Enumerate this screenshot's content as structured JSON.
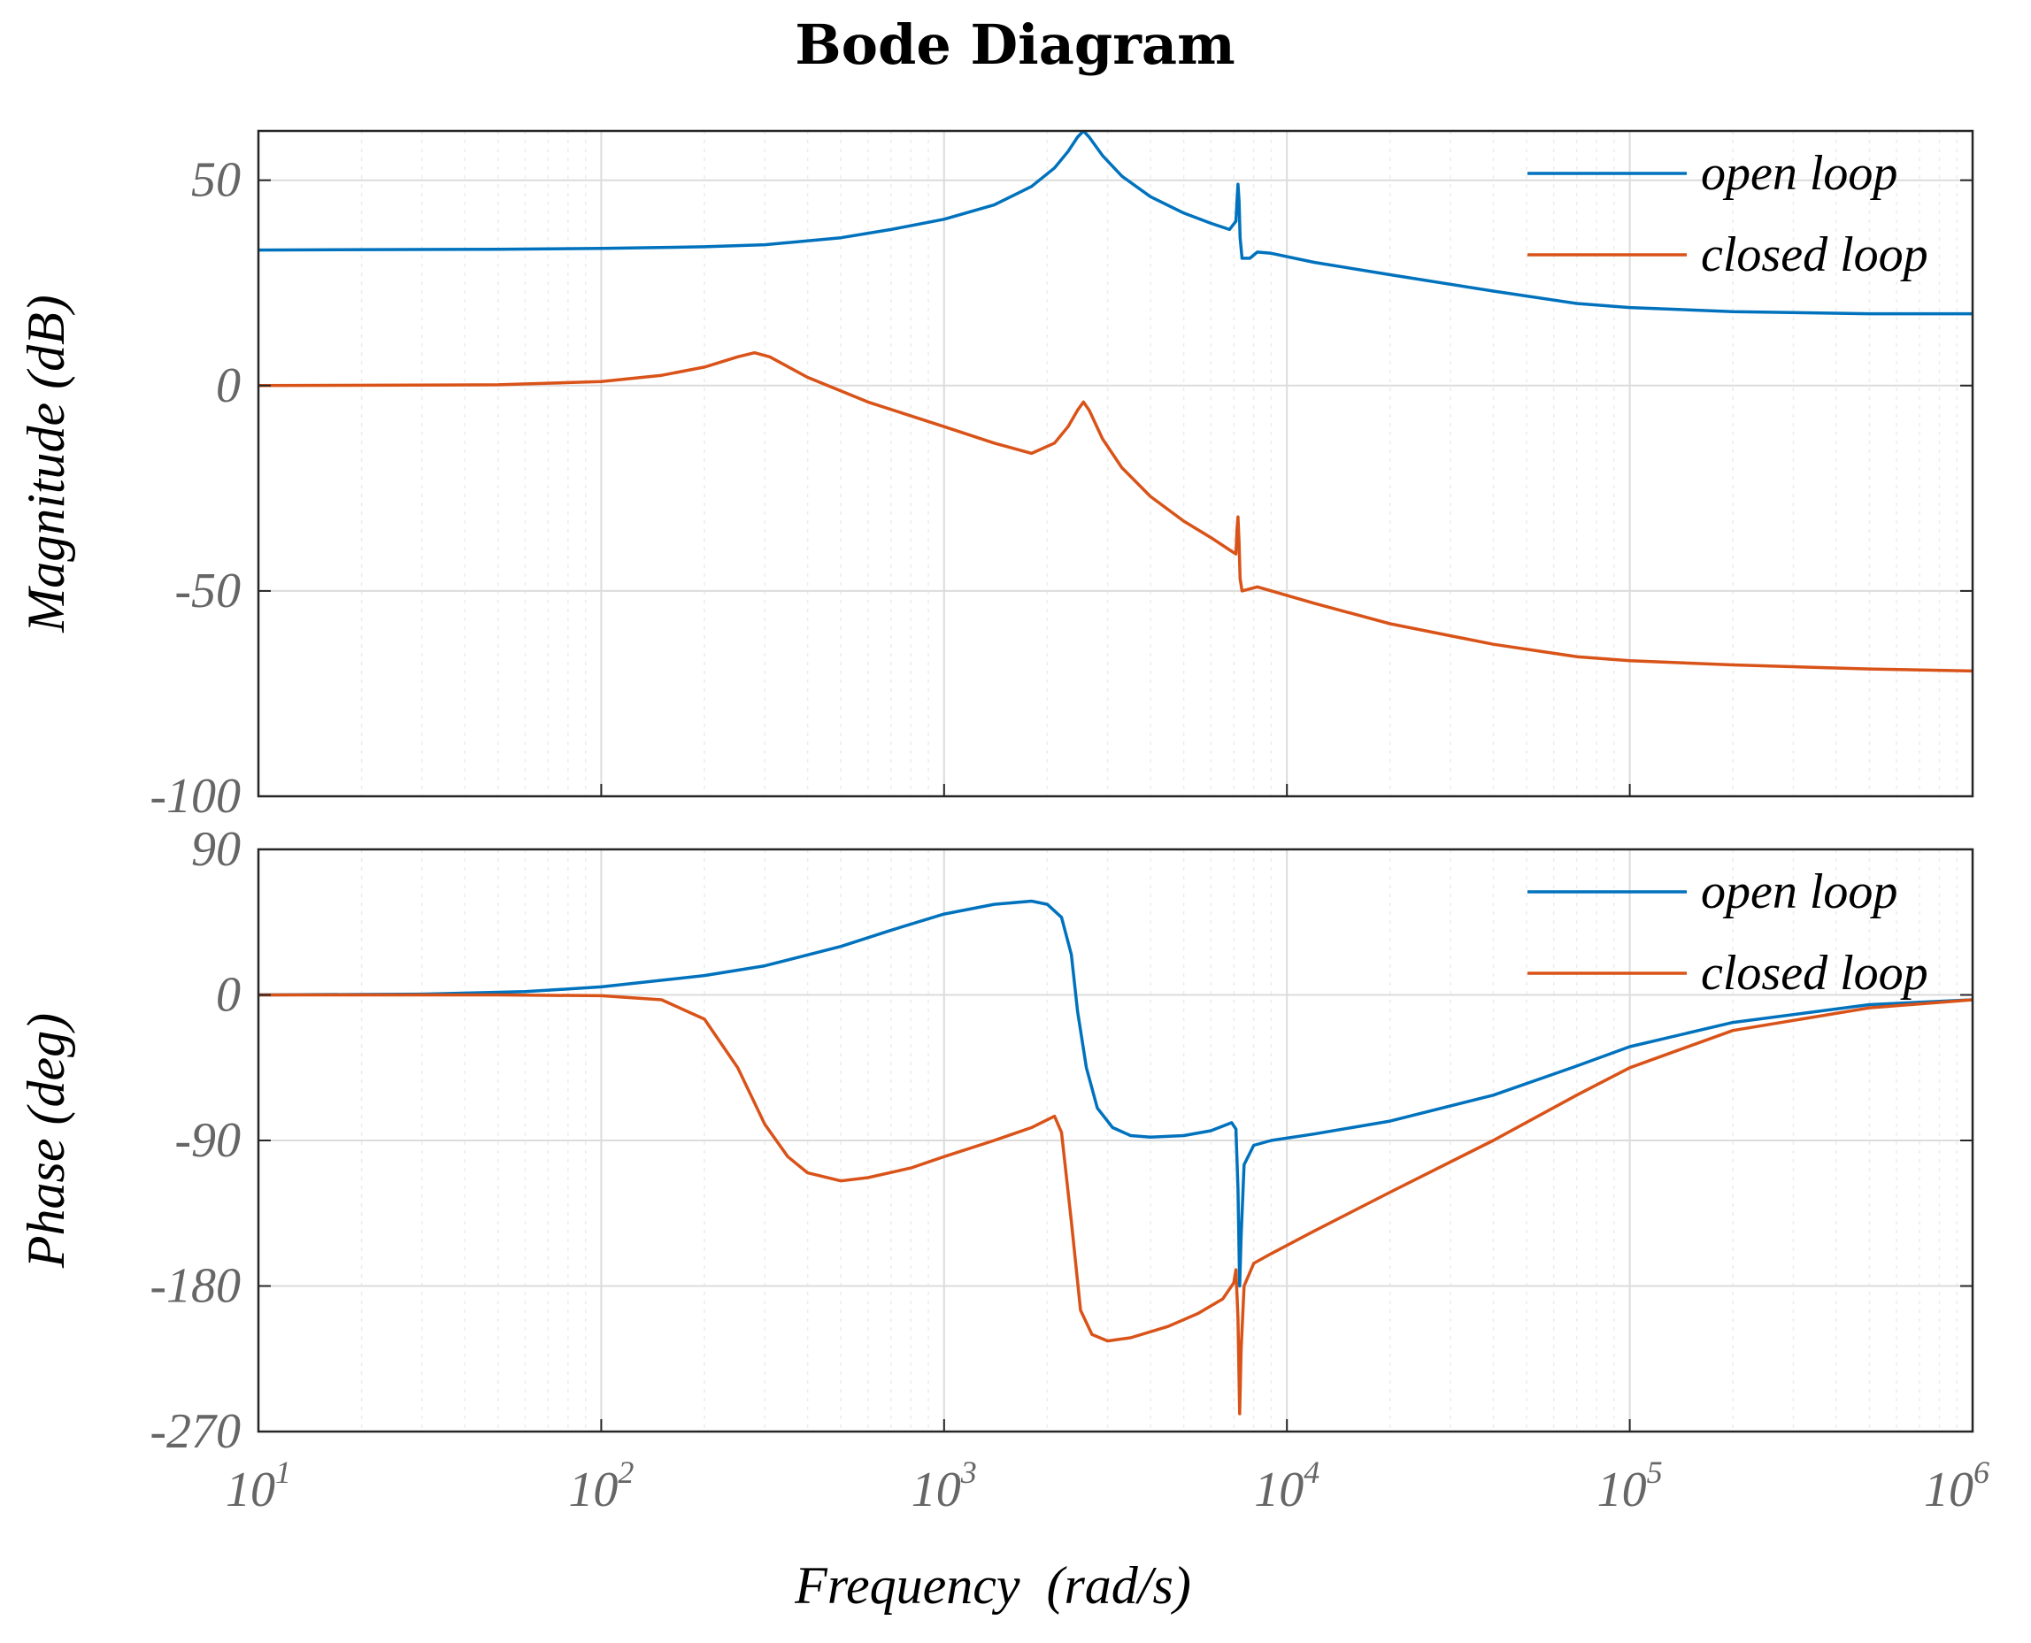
{
  "chart_data": {
    "type": "line",
    "title": "Bode Diagram",
    "xlabel": "Frequency  (rad/s)",
    "xscale": "log",
    "xlim": [
      10,
      1000000
    ],
    "x_ticks": [
      {
        "base": "10",
        "exp": "1"
      },
      {
        "base": "10",
        "exp": "2"
      },
      {
        "base": "10",
        "exp": "3"
      },
      {
        "base": "10",
        "exp": "4"
      },
      {
        "base": "10",
        "exp": "5"
      },
      {
        "base": "10",
        "exp": "6"
      }
    ],
    "grid": true,
    "colors": {
      "open_loop": "#0072BD",
      "closed_loop": "#D95319",
      "grid": "#dcdcdc",
      "axes": "#262626"
    },
    "panels": [
      {
        "id": "magnitude",
        "ylabel": "Magnitude (dB)",
        "ylim": [
          -100,
          62
        ],
        "yticks": [
          50,
          0,
          -50,
          -100
        ],
        "ytick_labels": [
          "50",
          "0",
          "-50",
          "-100"
        ],
        "legend": [
          "open loop",
          "closed loop"
        ],
        "legend_position": "top-right",
        "series": [
          {
            "name": "open loop",
            "points": [
              [
                10,
                33
              ],
              [
                50,
                33.2
              ],
              [
                100,
                33.4
              ],
              [
                200,
                33.8
              ],
              [
                300,
                34.3
              ],
              [
                500,
                36
              ],
              [
                700,
                38
              ],
              [
                1000,
                40.5
              ],
              [
                1400,
                44
              ],
              [
                1800,
                48.5
              ],
              [
                2100,
                53
              ],
              [
                2300,
                57
              ],
              [
                2450,
                60.5
              ],
              [
                2550,
                62
              ],
              [
                2650,
                60.5
              ],
              [
                2900,
                56
              ],
              [
                3300,
                51
              ],
              [
                4000,
                46
              ],
              [
                5000,
                42
              ],
              [
                6000,
                39.5
              ],
              [
                6800,
                38
              ],
              [
                7100,
                40
              ],
              [
                7150,
                45
              ],
              [
                7200,
                49
              ],
              [
                7250,
                45
              ],
              [
                7300,
                36
              ],
              [
                7400,
                31
              ],
              [
                7800,
                31
              ],
              [
                8200,
                32.5
              ],
              [
                9000,
                32.2
              ],
              [
                12000,
                30
              ],
              [
                20000,
                27
              ],
              [
                40000,
                23
              ],
              [
                70000,
                20
              ],
              [
                100000,
                19
              ],
              [
                200000,
                18
              ],
              [
                500000,
                17.5
              ],
              [
                1000000,
                17.5
              ]
            ]
          },
          {
            "name": "closed loop",
            "points": [
              [
                10,
                0
              ],
              [
                50,
                0.2
              ],
              [
                100,
                1
              ],
              [
                150,
                2.5
              ],
              [
                200,
                4.5
              ],
              [
                250,
                7
              ],
              [
                280,
                8
              ],
              [
                310,
                7
              ],
              [
                400,
                2
              ],
              [
                600,
                -4
              ],
              [
                1000,
                -10
              ],
              [
                1400,
                -14
              ],
              [
                1800,
                -16.5
              ],
              [
                2100,
                -14
              ],
              [
                2300,
                -10
              ],
              [
                2450,
                -6
              ],
              [
                2550,
                -4
              ],
              [
                2650,
                -6
              ],
              [
                2900,
                -13
              ],
              [
                3300,
                -20
              ],
              [
                4000,
                -27
              ],
              [
                5000,
                -33
              ],
              [
                6000,
                -37
              ],
              [
                6800,
                -40
              ],
              [
                7100,
                -41
              ],
              [
                7150,
                -35
              ],
              [
                7200,
                -32
              ],
              [
                7250,
                -38
              ],
              [
                7300,
                -47
              ],
              [
                7400,
                -50
              ],
              [
                7800,
                -49.5
              ],
              [
                8200,
                -49
              ],
              [
                12000,
                -53
              ],
              [
                20000,
                -58
              ],
              [
                40000,
                -63
              ],
              [
                70000,
                -66
              ],
              [
                100000,
                -67
              ],
              [
                200000,
                -68
              ],
              [
                500000,
                -69
              ],
              [
                1000000,
                -69.5
              ]
            ]
          }
        ]
      },
      {
        "id": "phase",
        "ylabel": "Phase (deg)",
        "ylim": [
          -270,
          90
        ],
        "yticks": [
          90,
          0,
          -90,
          -180,
          -270
        ],
        "ytick_labels": [
          "90",
          "0",
          "-90",
          "-180",
          "-270"
        ],
        "legend": [
          "open loop",
          "closed loop"
        ],
        "legend_position": "top-right",
        "series": [
          {
            "name": "open loop",
            "points": [
              [
                10,
                0
              ],
              [
                30,
                0.5
              ],
              [
                60,
                2
              ],
              [
                100,
                5
              ],
              [
                200,
                12
              ],
              [
                300,
                18
              ],
              [
                500,
                30
              ],
              [
                700,
                40
              ],
              [
                1000,
                50
              ],
              [
                1400,
                56
              ],
              [
                1800,
                58
              ],
              [
                2000,
                56
              ],
              [
                2200,
                48
              ],
              [
                2350,
                25
              ],
              [
                2450,
                -10
              ],
              [
                2600,
                -45
              ],
              [
                2800,
                -70
              ],
              [
                3100,
                -82
              ],
              [
                3500,
                -87
              ],
              [
                4000,
                -88
              ],
              [
                5000,
                -87
              ],
              [
                6000,
                -84
              ],
              [
                6900,
                -79
              ],
              [
                7100,
                -83
              ],
              [
                7200,
                -120
              ],
              [
                7280,
                -180
              ],
              [
                7350,
                -150
              ],
              [
                7500,
                -105
              ],
              [
                8000,
                -93
              ],
              [
                9000,
                -90
              ],
              [
                12000,
                -86
              ],
              [
                20000,
                -78
              ],
              [
                40000,
                -62
              ],
              [
                70000,
                -44
              ],
              [
                100000,
                -32
              ],
              [
                200000,
                -17
              ],
              [
                500000,
                -6
              ],
              [
                1000000,
                -3
              ]
            ]
          },
          {
            "name": "closed loop",
            "points": [
              [
                10,
                0
              ],
              [
                50,
                0
              ],
              [
                100,
                -0.5
              ],
              [
                150,
                -3
              ],
              [
                200,
                -15
              ],
              [
                250,
                -45
              ],
              [
                300,
                -80
              ],
              [
                350,
                -100
              ],
              [
                400,
                -110
              ],
              [
                500,
                -115
              ],
              [
                600,
                -113
              ],
              [
                800,
                -107
              ],
              [
                1000,
                -100
              ],
              [
                1400,
                -90
              ],
              [
                1800,
                -82
              ],
              [
                2100,
                -75
              ],
              [
                2200,
                -85
              ],
              [
                2350,
                -140
              ],
              [
                2500,
                -195
              ],
              [
                2700,
                -210
              ],
              [
                3000,
                -214
              ],
              [
                3500,
                -212
              ],
              [
                4500,
                -205
              ],
              [
                5500,
                -197
              ],
              [
                6500,
                -188
              ],
              [
                7000,
                -178
              ],
              [
                7100,
                -170
              ],
              [
                7200,
                -200
              ],
              [
                7280,
                -259
              ],
              [
                7350,
                -220
              ],
              [
                7500,
                -180
              ],
              [
                8000,
                -166
              ],
              [
                9000,
                -160
              ],
              [
                12000,
                -146
              ],
              [
                20000,
                -122
              ],
              [
                40000,
                -90
              ],
              [
                70000,
                -62
              ],
              [
                100000,
                -45
              ],
              [
                200000,
                -22
              ],
              [
                500000,
                -8
              ],
              [
                1000000,
                -3
              ]
            ]
          }
        ]
      }
    ]
  }
}
